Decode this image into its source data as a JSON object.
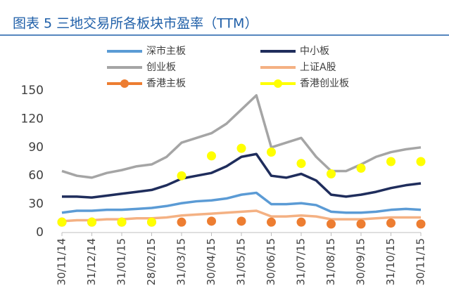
{
  "chart_data": {
    "type": "line",
    "title": "图表 5  三地交易所各板块市盈率（TTM）",
    "categories": [
      "30/11/14",
      null,
      "31/12/14",
      null,
      "31/01/15",
      null,
      "28/02/15",
      null,
      "31/03/15",
      null,
      "30/04/15",
      null,
      "31/05/15",
      null,
      "30/06/15",
      null,
      "31/07/15",
      null,
      "31/08/15",
      null,
      "30/09/15",
      null,
      "31/10/15",
      null,
      "30/11/15"
    ],
    "ylim": [
      0,
      150
    ],
    "yticks": [
      0,
      30,
      60,
      90,
      120,
      150
    ],
    "grid": false,
    "series": [
      {
        "name": "深市主板",
        "color": "#5b9bd5",
        "style": "line",
        "values": [
          21,
          23,
          23,
          24,
          24,
          25,
          26,
          28,
          31,
          33,
          34,
          36,
          40,
          42,
          30,
          30,
          31,
          29,
          22,
          21,
          21,
          22,
          24,
          25,
          24
        ]
      },
      {
        "name": "中小板",
        "color": "#1f2d5c",
        "style": "line",
        "values": [
          38,
          38,
          37,
          39,
          41,
          43,
          45,
          50,
          57,
          60,
          63,
          70,
          80,
          83,
          60,
          58,
          62,
          55,
          40,
          38,
          40,
          43,
          47,
          50,
          52
        ]
      },
      {
        "name": "创业板",
        "color": "#a5a5a5",
        "style": "line",
        "values": [
          65,
          60,
          58,
          63,
          66,
          70,
          72,
          80,
          95,
          100,
          105,
          115,
          130,
          145,
          90,
          95,
          100,
          80,
          65,
          65,
          72,
          80,
          85,
          88,
          90
        ]
      },
      {
        "name": "上证A股",
        "color": "#f4b183",
        "style": "line",
        "values": [
          12,
          13,
          13,
          14,
          14,
          15,
          15,
          16,
          18,
          19,
          20,
          21,
          22,
          23,
          17,
          17,
          18,
          17,
          14,
          14,
          14,
          15,
          16,
          16,
          16
        ]
      },
      {
        "name": "香港主板",
        "color": "#ed7d31",
        "style": "marker",
        "values": [
          11,
          null,
          11,
          null,
          11,
          null,
          11,
          null,
          11,
          null,
          12,
          null,
          12,
          null,
          11,
          null,
          11,
          null,
          9,
          null,
          9,
          null,
          10,
          null,
          9
        ]
      },
      {
        "name": "香港创业板",
        "color": "#ffff00",
        "style": "marker",
        "values": [
          11,
          null,
          11,
          null,
          11,
          null,
          11,
          null,
          60,
          null,
          81,
          null,
          89,
          null,
          85,
          null,
          73,
          null,
          62,
          null,
          68,
          null,
          75,
          null,
          75
        ]
      }
    ]
  }
}
